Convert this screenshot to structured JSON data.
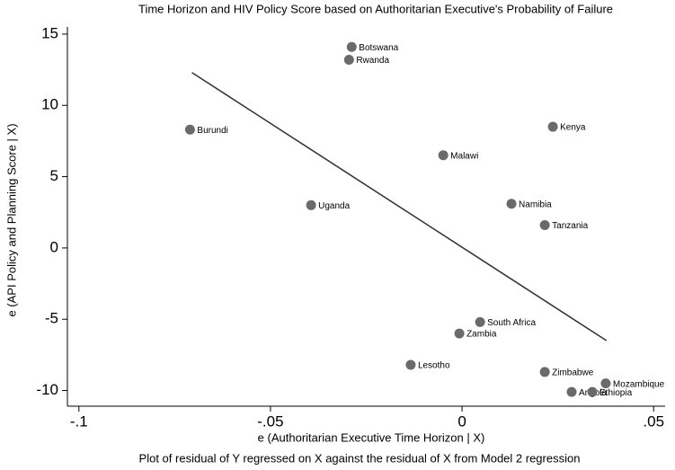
{
  "chart_data": {
    "type": "scatter",
    "title": "Time Horizon and HIV Policy Score based on Authoritarian Executive's Probability of Failure",
    "x_label": "e (Authoritarian Executive Time Horizon | X)",
    "y_label": "e (API Policy and Planning Score | X)",
    "caption": "Plot of residual of Y regressed on X against the residual of X from Model 2 regression",
    "color": "#6a6a6a",
    "point_labels": [
      "Botswana",
      "Rwanda",
      "Burundi",
      "Kenya",
      "Malawi",
      "Uganda",
      "Namibia",
      "Tanzania",
      "South Africa",
      "Zambia",
      "Lesotho",
      "Zimbabwe",
      "Mozambique",
      "Angola",
      "Ethiopia"
    ],
    "x": [
      -0.0288,
      -0.0295,
      -0.071,
      0.0237,
      -0.0049,
      -0.0394,
      0.0129,
      0.0216,
      0.0047,
      -0.0007,
      -0.0134,
      0.0216,
      0.0375,
      0.0286,
      0.034
    ],
    "values": [
      14.1,
      13.2,
      8.3,
      8.5,
      6.5,
      3.0,
      3.1,
      1.6,
      -5.2,
      -6.0,
      -8.2,
      -8.7,
      -9.5,
      -10.1,
      -10.1
    ],
    "fit_line": {
      "x": [
        -0.0705,
        0.0377
      ],
      "values": [
        12.3,
        -6.5
      ],
      "color": "#333333"
    },
    "xlim": [
      -0.103,
      0.053
    ],
    "ylim": [
      -11.1,
      15.5
    ],
    "xticks": [
      {
        "value": -0.1,
        "label": "-.1"
      },
      {
        "value": -0.05,
        "label": "-.05"
      },
      0,
      {
        "value": 0.05,
        "label": ".05"
      }
    ],
    "yticks": [
      -10,
      -5,
      0,
      5,
      10,
      15
    ]
  }
}
